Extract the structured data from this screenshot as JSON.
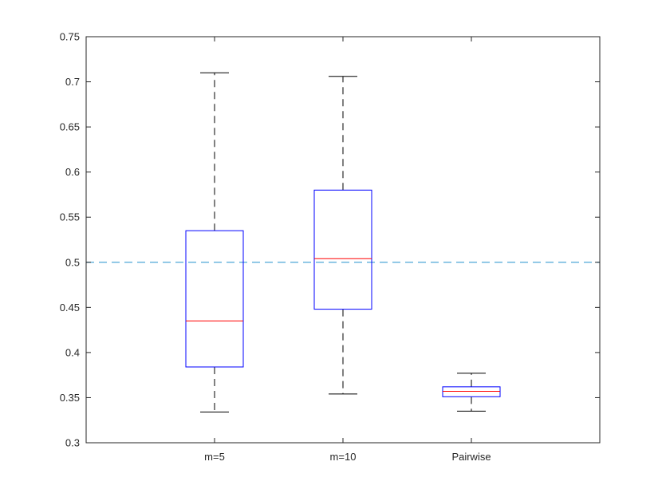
{
  "chart_data": {
    "type": "box",
    "title": "",
    "xlabel": "",
    "ylabel": "",
    "ylim": [
      0.3,
      0.75
    ],
    "yticks": [
      0.3,
      0.35,
      0.4,
      0.45,
      0.5,
      0.55,
      0.6,
      0.65,
      0.7,
      0.75
    ],
    "ytick_labels": [
      "0.3",
      "0.35",
      "0.4",
      "0.45",
      "0.5",
      "0.55",
      "0.6",
      "0.65",
      "0.7",
      "0.75"
    ],
    "categories": [
      "m=5",
      "m=10",
      "Pairwise"
    ],
    "boxes": [
      {
        "category": "m=5",
        "whisker_low": 0.334,
        "q1": 0.384,
        "median": 0.435,
        "q3": 0.535,
        "whisker_high": 0.71
      },
      {
        "category": "m=10",
        "whisker_low": 0.354,
        "q1": 0.448,
        "median": 0.504,
        "q3": 0.58,
        "whisker_high": 0.706
      },
      {
        "category": "Pairwise",
        "whisker_low": 0.335,
        "q1": 0.351,
        "median": 0.357,
        "q3": 0.362,
        "whisker_high": 0.377
      }
    ],
    "reference_line": {
      "y": 0.5,
      "style": "dashed"
    },
    "grid": false,
    "colors": {
      "box": "#0000ff",
      "median": "#ff0000",
      "whisker": "#000000",
      "reference": "#4da6d6",
      "axis": "#262626"
    }
  }
}
